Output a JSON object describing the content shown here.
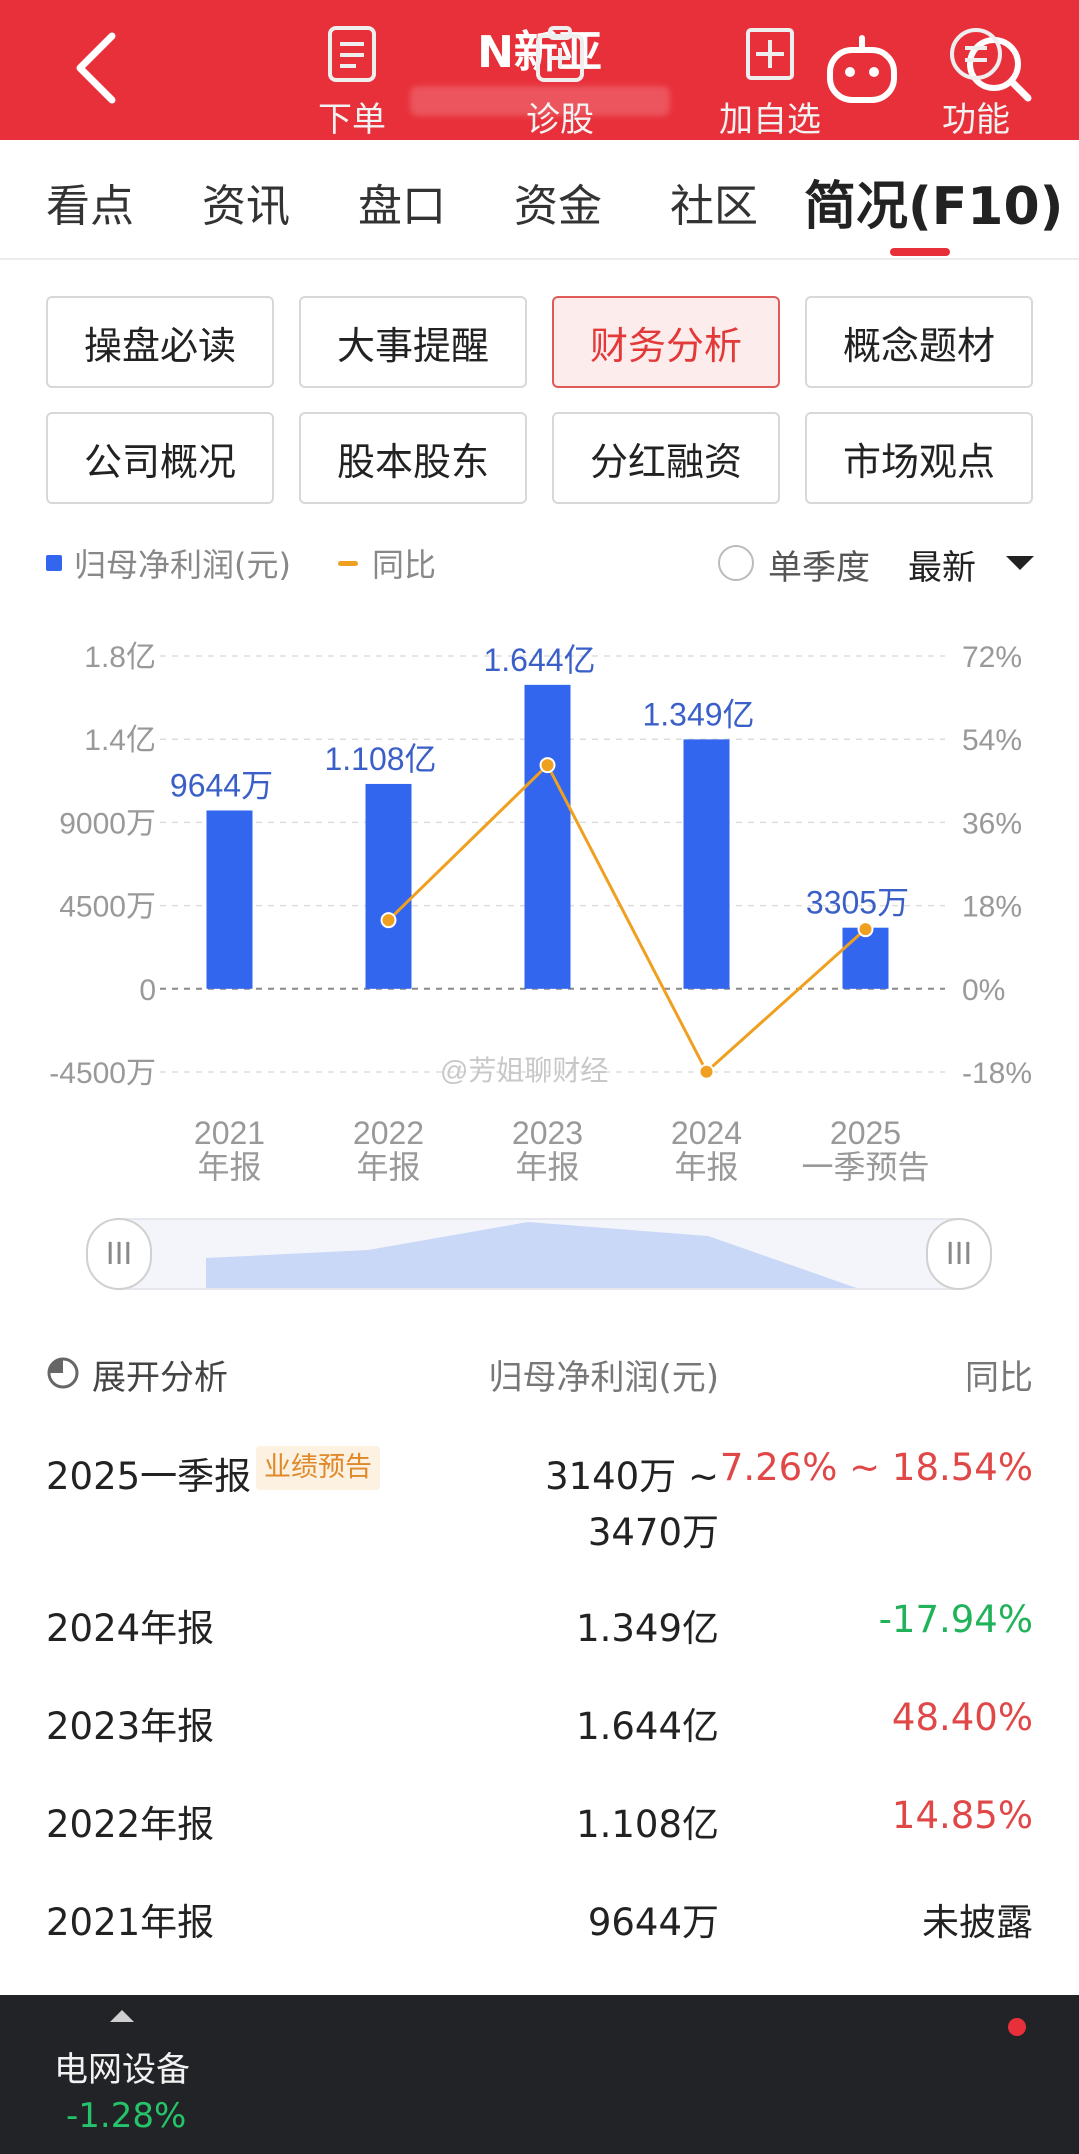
{
  "header": {
    "title": "N新亚",
    "bg_color": "#e8303a"
  },
  "tabs": [
    {
      "label": "看点"
    },
    {
      "label": "资讯"
    },
    {
      "label": "盘口"
    },
    {
      "label": "资金"
    },
    {
      "label": "社区"
    },
    {
      "label": "简况(F10)",
      "active": true
    }
  ],
  "grid_buttons": [
    {
      "label": "操盘必读"
    },
    {
      "label": "大事提醒"
    },
    {
      "label": "财务分析",
      "active": true
    },
    {
      "label": "概念题材"
    },
    {
      "label": "公司概况"
    },
    {
      "label": "股本股东"
    },
    {
      "label": "分红融资"
    },
    {
      "label": "市场观点"
    }
  ],
  "legend": {
    "bar_label": "归母净利润(元)",
    "line_label": "同比",
    "bar_color": "#3366ee",
    "line_color": "#f0a020"
  },
  "options": {
    "quarterly_label": "单季度",
    "period_label": "最新"
  },
  "chart_data": {
    "type": "bar",
    "categories": [
      "2021\n年报",
      "2022\n年报",
      "2023\n年报",
      "2024\n年报",
      "2025\n一季预告"
    ],
    "series": [
      {
        "name": "归母净利润(元)",
        "type": "bar",
        "values": [
          96440000,
          110800000,
          164400000,
          134900000,
          33050000
        ],
        "labels": [
          "9644万",
          "1.108亿",
          "1.644亿",
          "1.349亿",
          "3305万"
        ]
      },
      {
        "name": "同比",
        "type": "line",
        "values": [
          null,
          14.85,
          48.4,
          -17.94,
          12.9
        ]
      }
    ],
    "y_left": {
      "ticks": [
        "1.8亿",
        "1.4亿",
        "9000万",
        "4500万",
        "0",
        "-4500万"
      ],
      "range": [
        -45000000,
        180000000
      ]
    },
    "y_right": {
      "ticks": [
        "72%",
        "54%",
        "36%",
        "18%",
        "0%",
        "-18%"
      ],
      "range": [
        -18,
        72
      ]
    },
    "grid": true,
    "watermark": "@芳姐聊财经"
  },
  "analysis": {
    "expand_label": "展开分析",
    "col_value": "归母净利润(元)",
    "col_yoy": "同比",
    "rows": [
      {
        "period": "2025一季报",
        "tag": "业绩预告",
        "value_line1": "3140万 ~",
        "value_line2": "3470万",
        "yoy": "7.26% ~ 18.54%",
        "yoy_color": "#e04848"
      },
      {
        "period": "2024年报",
        "value": "1.349亿",
        "yoy": "-17.94%",
        "yoy_color": "#22b35a"
      },
      {
        "period": "2023年报",
        "value": "1.644亿",
        "yoy": "48.40%",
        "yoy_color": "#e04848"
      },
      {
        "period": "2022年报",
        "value": "1.108亿",
        "yoy": "14.85%",
        "yoy_color": "#e04848"
      },
      {
        "period": "2021年报",
        "value": "9644万",
        "yoy": "未披露",
        "yoy_color": "#222222"
      }
    ]
  },
  "bottom_bar": {
    "sector_name": "电网设备",
    "sector_change": "-1.28%",
    "items": [
      {
        "label": "下单"
      },
      {
        "label": "诊股"
      },
      {
        "label": "加自选"
      },
      {
        "label": "功能"
      }
    ]
  }
}
